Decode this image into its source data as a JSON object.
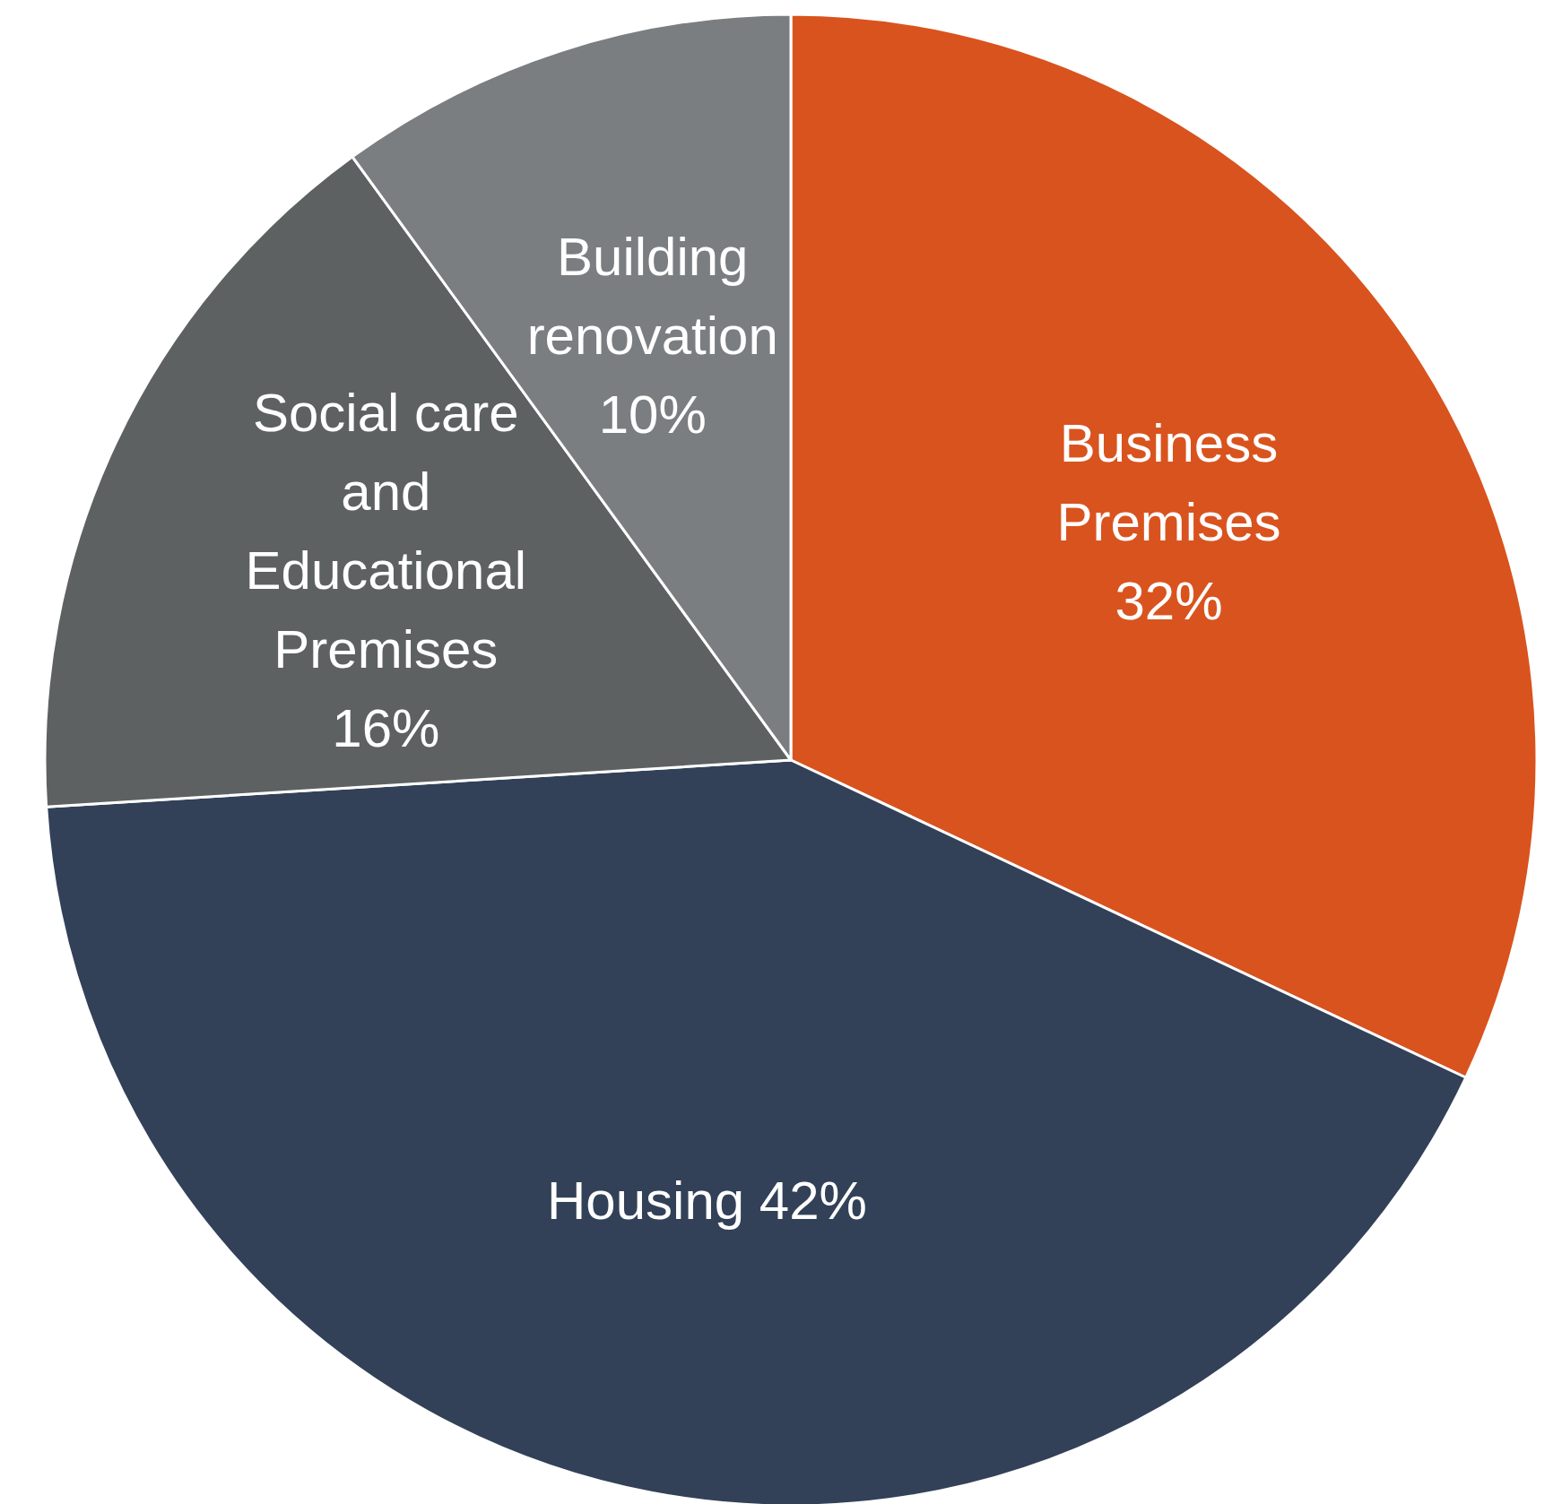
{
  "chart_data": {
    "type": "pie",
    "categories": [
      "Business Premises",
      "Housing",
      "Social care and Educational Premises",
      "Building renovation"
    ],
    "values": [
      32,
      42,
      16,
      10
    ],
    "colors": [
      "#d9531e",
      "#324158",
      "#5d6161",
      "#7a7e80"
    ],
    "value_labels": [
      "32%",
      "42%",
      "16%",
      "10%"
    ],
    "legend": false
  }
}
